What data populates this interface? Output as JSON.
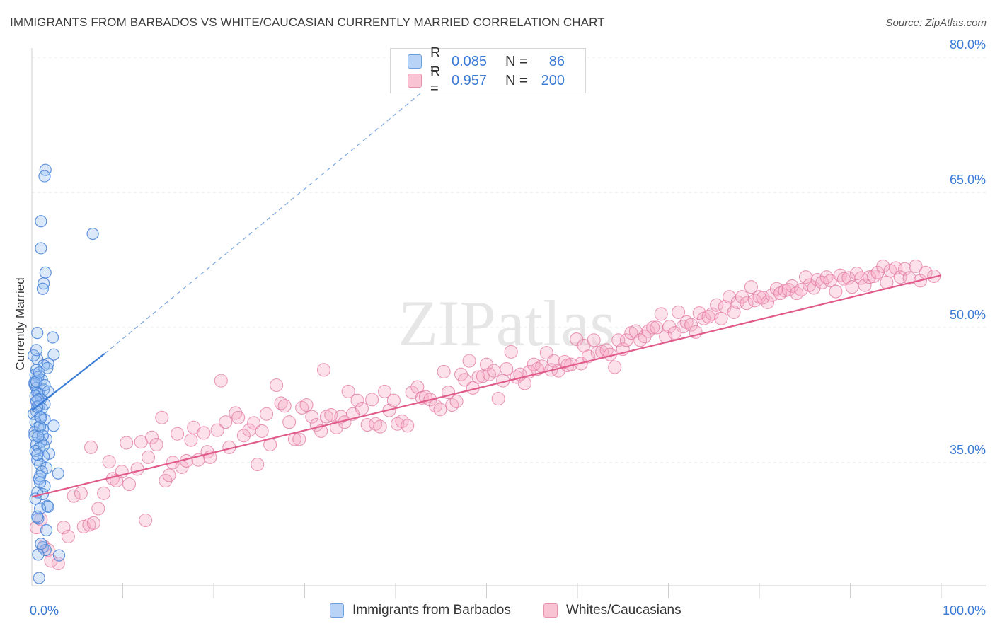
{
  "title": "IMMIGRANTS FROM BARBADOS VS WHITE/CAUCASIAN CURRENTLY MARRIED CORRELATION CHART",
  "source": "Source: ZipAtlas.com",
  "watermark": "ZIPatlas",
  "legend": {
    "rows": [
      {
        "r_label": "R =",
        "r_value": "0.085",
        "n_label": "N =",
        "n_value": "86",
        "fill": "#b8d3f5",
        "stroke": "#6fa0de"
      },
      {
        "r_label": "R =",
        "r_value": "0.957",
        "n_label": "N =",
        "n_value": "200",
        "fill": "#f8c4d4",
        "stroke": "#e892ad"
      }
    ]
  },
  "bottom_legend": [
    {
      "label": "Immigrants from Barbados",
      "fill": "#b8d3f5",
      "stroke": "#6fa0de"
    },
    {
      "label": "Whites/Caucasians",
      "fill": "#f8c4d4",
      "stroke": "#e892ad"
    }
  ],
  "chart_data": {
    "type": "scatter",
    "title": "IMMIGRANTS FROM BARBADOS VS WHITE/CAUCASIAN CURRENTLY MARRIED CORRELATION CHART",
    "xlabel": "",
    "ylabel": "Currently Married",
    "xlim": [
      0,
      100
    ],
    "ylim": [
      20,
      82
    ],
    "x_tick_labels": [
      "0.0%",
      "100.0%"
    ],
    "y_ticks": [
      35,
      50,
      65,
      80
    ],
    "y_tick_labels": [
      "35.0%",
      "50.0%",
      "65.0%",
      "80.0%"
    ],
    "grid": true,
    "colors": {
      "blue": "#3a7bd5",
      "pink": "#e05a8a",
      "axis_text": "#3a7bd5"
    },
    "series": [
      {
        "name": "Immigrants from Barbados",
        "R": 0.085,
        "N": 86,
        "trend": {
          "x": [
            0,
            8
          ],
          "y": [
            40.8,
            47.1
          ]
        },
        "trend_extension": {
          "x": [
            8,
            43
          ],
          "y": [
            47.1,
            76.2
          ]
        },
        "points": [
          [
            1.5,
            67.5
          ],
          [
            1.4,
            66.8
          ],
          [
            1.0,
            61.8
          ],
          [
            6.7,
            60.4
          ],
          [
            1.0,
            58.8
          ],
          [
            1.5,
            56.1
          ],
          [
            1.3,
            54.9
          ],
          [
            1.2,
            54.3
          ],
          [
            0.6,
            49.4
          ],
          [
            2.3,
            48.9
          ],
          [
            2.4,
            47.0
          ],
          [
            0.6,
            46.5
          ],
          [
            1.8,
            46.0
          ],
          [
            1.3,
            45.8
          ],
          [
            1.7,
            45.5
          ],
          [
            0.5,
            45.3
          ],
          [
            0.4,
            44.8
          ],
          [
            0.7,
            44.5
          ],
          [
            1.1,
            44.2
          ],
          [
            0.3,
            43.7
          ],
          [
            0.5,
            43.3
          ],
          [
            1.3,
            43.1
          ],
          [
            0.6,
            42.8
          ],
          [
            0.8,
            42.6
          ],
          [
            0.4,
            42.4
          ],
          [
            1.0,
            42.1
          ],
          [
            0.5,
            41.8
          ],
          [
            1.4,
            41.5
          ],
          [
            0.8,
            41.3
          ],
          [
            1.1,
            41.0
          ],
          [
            0.5,
            40.7
          ],
          [
            0.2,
            40.4
          ],
          [
            0.9,
            40.1
          ],
          [
            1.4,
            39.8
          ],
          [
            0.4,
            39.5
          ],
          [
            2.4,
            39.1
          ],
          [
            0.7,
            38.9
          ],
          [
            1.2,
            38.7
          ],
          [
            0.3,
            38.4
          ],
          [
            1.6,
            37.6
          ],
          [
            1.0,
            37.3
          ],
          [
            0.5,
            37.0
          ],
          [
            0.8,
            36.6
          ],
          [
            1.9,
            36.0
          ],
          [
            1.3,
            35.7
          ],
          [
            0.6,
            35.3
          ],
          [
            0.9,
            34.8
          ],
          [
            1.6,
            34.4
          ],
          [
            2.9,
            33.8
          ],
          [
            0.8,
            33.2
          ],
          [
            1.4,
            32.4
          ],
          [
            0.6,
            31.7
          ],
          [
            1.2,
            31.5
          ],
          [
            1.7,
            30.2
          ],
          [
            1.8,
            30.1
          ],
          [
            0.9,
            29.9
          ],
          [
            0.7,
            28.8
          ],
          [
            1.6,
            27.5
          ],
          [
            1.2,
            25.6
          ],
          [
            1.5,
            25.3
          ],
          [
            0.7,
            24.8
          ],
          [
            3.0,
            24.7
          ],
          [
            0.8,
            22.2
          ],
          [
            0.3,
            43.9
          ],
          [
            0.6,
            41.2
          ],
          [
            0.9,
            39.0
          ],
          [
            0.4,
            36.3
          ],
          [
            1.1,
            34.0
          ],
          [
            0.2,
            46.9
          ],
          [
            0.5,
            44.0
          ],
          [
            0.7,
            42.0
          ],
          [
            1.0,
            40.0
          ],
          [
            0.3,
            38.0
          ],
          [
            0.6,
            35.9
          ],
          [
            0.9,
            33.5
          ],
          [
            1.4,
            43.6
          ],
          [
            0.8,
            45.0
          ],
          [
            1.2,
            38.0
          ],
          [
            0.4,
            31.0
          ],
          [
            1.0,
            26.0
          ],
          [
            0.5,
            47.5
          ],
          [
            1.8,
            42.9
          ],
          [
            0.7,
            37.9
          ],
          [
            1.3,
            36.9
          ],
          [
            0.6,
            29.0
          ],
          [
            0.9,
            32.8
          ]
        ]
      },
      {
        "name": "Whites/Caucasians",
        "R": 0.957,
        "N": 200,
        "trend": {
          "x": [
            0,
            100
          ],
          "y": [
            31.2,
            55.8
          ]
        },
        "points": [
          [
            0.5,
            27.8
          ],
          [
            1.0,
            28.7
          ],
          [
            1.3,
            25.7
          ],
          [
            1.8,
            25.3
          ],
          [
            2.1,
            24.1
          ],
          [
            2.9,
            23.8
          ],
          [
            3.5,
            27.8
          ],
          [
            4.0,
            26.8
          ],
          [
            4.6,
            31.3
          ],
          [
            5.4,
            31.6
          ],
          [
            5.7,
            27.9
          ],
          [
            6.3,
            28.1
          ],
          [
            6.5,
            36.7
          ],
          [
            6.8,
            28.3
          ],
          [
            7.3,
            29.9
          ],
          [
            7.9,
            31.6
          ],
          [
            8.5,
            35.1
          ],
          [
            8.9,
            33.2
          ],
          [
            9.3,
            33.0
          ],
          [
            9.9,
            34.0
          ],
          [
            10.4,
            37.2
          ],
          [
            10.7,
            32.6
          ],
          [
            11.6,
            34.3
          ],
          [
            12.0,
            37.3
          ],
          [
            12.5,
            28.6
          ],
          [
            12.8,
            35.6
          ],
          [
            13.2,
            37.8
          ],
          [
            13.7,
            37.0
          ],
          [
            14.3,
            40.0
          ],
          [
            14.7,
            33.0
          ],
          [
            15.1,
            33.6
          ],
          [
            15.5,
            35.0
          ],
          [
            16.0,
            38.2
          ],
          [
            16.5,
            34.5
          ],
          [
            17.0,
            35.2
          ],
          [
            17.5,
            37.5
          ],
          [
            17.8,
            38.9
          ],
          [
            18.3,
            35.3
          ],
          [
            18.9,
            38.3
          ],
          [
            19.3,
            36.2
          ],
          [
            19.6,
            35.6
          ],
          [
            20.4,
            38.6
          ],
          [
            20.8,
            44.1
          ],
          [
            21.3,
            39.5
          ],
          [
            21.7,
            36.7
          ],
          [
            22.4,
            40.5
          ],
          [
            22.7,
            40.0
          ],
          [
            23.3,
            38.0
          ],
          [
            23.9,
            38.6
          ],
          [
            24.4,
            39.4
          ],
          [
            24.8,
            34.8
          ],
          [
            25.3,
            38.5
          ],
          [
            25.8,
            40.4
          ],
          [
            26.2,
            37.0
          ],
          [
            26.9,
            43.6
          ],
          [
            27.4,
            41.6
          ],
          [
            27.8,
            41.3
          ],
          [
            28.3,
            39.5
          ],
          [
            28.9,
            37.6
          ],
          [
            29.4,
            37.6
          ],
          [
            29.7,
            41.1
          ],
          [
            30.2,
            41.4
          ],
          [
            30.8,
            40.1
          ],
          [
            31.3,
            39.2
          ],
          [
            31.8,
            38.5
          ],
          [
            32.1,
            45.3
          ],
          [
            32.4,
            40.1
          ],
          [
            32.9,
            40.3
          ],
          [
            33.5,
            38.9
          ],
          [
            34.0,
            40.1
          ],
          [
            34.4,
            39.5
          ],
          [
            34.8,
            42.9
          ],
          [
            35.3,
            40.4
          ],
          [
            35.8,
            41.9
          ],
          [
            36.3,
            41.0
          ],
          [
            36.9,
            39.2
          ],
          [
            37.4,
            42.0
          ],
          [
            37.8,
            39.3
          ],
          [
            38.3,
            39.0
          ],
          [
            38.8,
            42.9
          ],
          [
            39.3,
            40.8
          ],
          [
            39.8,
            41.9
          ],
          [
            40.2,
            39.3
          ],
          [
            40.7,
            39.6
          ],
          [
            41.3,
            39.1
          ],
          [
            41.8,
            42.8
          ],
          [
            42.4,
            43.4
          ],
          [
            42.9,
            42.2
          ],
          [
            43.3,
            42.3
          ],
          [
            43.8,
            42.0
          ],
          [
            44.4,
            41.3
          ],
          [
            44.9,
            40.9
          ],
          [
            45.3,
            45.1
          ],
          [
            45.8,
            42.8
          ],
          [
            46.2,
            41.4
          ],
          [
            46.7,
            41.8
          ],
          [
            47.2,
            44.8
          ],
          [
            47.6,
            44.2
          ],
          [
            48.1,
            46.3
          ],
          [
            48.5,
            43.3
          ],
          [
            49.1,
            44.5
          ],
          [
            49.6,
            44.6
          ],
          [
            50.0,
            45.9
          ],
          [
            50.3,
            44.8
          ],
          [
            50.8,
            45.2
          ],
          [
            51.3,
            42.1
          ],
          [
            51.8,
            44.1
          ],
          [
            52.2,
            45.4
          ],
          [
            52.7,
            47.3
          ],
          [
            53.3,
            44.5
          ],
          [
            53.7,
            44.8
          ],
          [
            54.2,
            43.8
          ],
          [
            54.7,
            45.1
          ],
          [
            55.2,
            45.9
          ],
          [
            55.6,
            45.4
          ],
          [
            56.1,
            45.7
          ],
          [
            56.6,
            47.2
          ],
          [
            57.1,
            45.3
          ],
          [
            57.4,
            46.3
          ],
          [
            57.9,
            45.2
          ],
          [
            58.6,
            46.2
          ],
          [
            58.9,
            45.8
          ],
          [
            59.3,
            45.9
          ],
          [
            59.9,
            48.7
          ],
          [
            60.4,
            46.0
          ],
          [
            60.7,
            48.0
          ],
          [
            61.2,
            46.8
          ],
          [
            61.8,
            48.6
          ],
          [
            62.2,
            47.2
          ],
          [
            62.7,
            47.3
          ],
          [
            63.2,
            47.5
          ],
          [
            63.6,
            47.0
          ],
          [
            64.1,
            45.6
          ],
          [
            64.5,
            48.6
          ],
          [
            65.0,
            47.6
          ],
          [
            65.4,
            48.6
          ],
          [
            65.9,
            49.4
          ],
          [
            66.4,
            49.6
          ],
          [
            66.9,
            48.6
          ],
          [
            67.4,
            49.0
          ],
          [
            67.8,
            49.6
          ],
          [
            68.3,
            50.0
          ],
          [
            68.7,
            50.0
          ],
          [
            69.2,
            51.5
          ],
          [
            69.7,
            49.0
          ],
          [
            70.1,
            50.1
          ],
          [
            70.7,
            49.4
          ],
          [
            71.1,
            51.7
          ],
          [
            71.6,
            50.1
          ],
          [
            72.0,
            50.6
          ],
          [
            72.5,
            50.3
          ],
          [
            73.0,
            49.5
          ],
          [
            73.4,
            51.6
          ],
          [
            73.9,
            51.0
          ],
          [
            74.4,
            51.2
          ],
          [
            74.8,
            51.5
          ],
          [
            75.3,
            52.5
          ],
          [
            75.8,
            51.0
          ],
          [
            76.2,
            52.3
          ],
          [
            76.7,
            53.4
          ],
          [
            77.2,
            51.7
          ],
          [
            77.6,
            52.8
          ],
          [
            78.1,
            53.4
          ],
          [
            78.6,
            52.7
          ],
          [
            79.1,
            54.5
          ],
          [
            79.5,
            53.0
          ],
          [
            80.0,
            53.4
          ],
          [
            80.4,
            53.3
          ],
          [
            80.9,
            52.8
          ],
          [
            81.4,
            53.6
          ],
          [
            81.9,
            54.3
          ],
          [
            82.3,
            53.8
          ],
          [
            82.8,
            54.1
          ],
          [
            83.2,
            54.2
          ],
          [
            83.6,
            54.6
          ],
          [
            84.1,
            53.8
          ],
          [
            84.6,
            54.2
          ],
          [
            85.1,
            55.6
          ],
          [
            85.5,
            54.7
          ],
          [
            86.0,
            54.4
          ],
          [
            86.4,
            55.3
          ],
          [
            86.9,
            55.0
          ],
          [
            87.4,
            55.6
          ],
          [
            87.8,
            55.2
          ],
          [
            88.4,
            54.0
          ],
          [
            88.9,
            55.8
          ],
          [
            89.3,
            55.4
          ],
          [
            89.8,
            55.5
          ],
          [
            90.2,
            54.5
          ],
          [
            90.7,
            56.0
          ],
          [
            91.2,
            55.5
          ],
          [
            91.6,
            54.7
          ],
          [
            92.1,
            55.6
          ],
          [
            92.6,
            55.7
          ],
          [
            93.0,
            56.1
          ],
          [
            93.6,
            56.8
          ],
          [
            94.0,
            55.0
          ],
          [
            94.4,
            56.3
          ],
          [
            95.0,
            56.6
          ],
          [
            95.5,
            55.6
          ],
          [
            96.0,
            56.5
          ],
          [
            96.5,
            55.5
          ],
          [
            97.2,
            56.8
          ],
          [
            97.7,
            55.2
          ],
          [
            98.3,
            56.1
          ],
          [
            99.2,
            55.7
          ]
        ]
      }
    ]
  }
}
